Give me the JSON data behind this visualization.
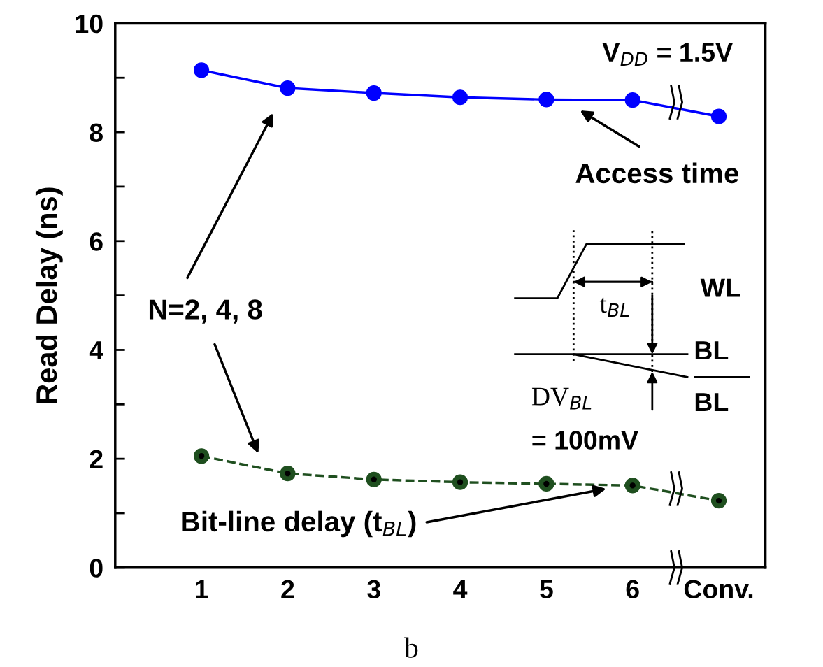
{
  "chart_data": {
    "type": "line",
    "ylabel": "Read Delay (ns)",
    "categories": [
      "1",
      "2",
      "3",
      "4",
      "5",
      "6",
      "Conv."
    ],
    "series": [
      {
        "color": "#0000ff",
        "values": [
          9.14,
          8.81,
          8.72,
          8.64,
          8.6,
          8.59,
          8.29
        ],
        "line_style": "solid",
        "marker": "circle"
      },
      {
        "color": "#1f4f1f",
        "values": [
          2.05,
          1.73,
          1.62,
          1.57,
          1.54,
          1.51,
          1.23
        ],
        "line_style": "dashed",
        "marker": "circle"
      }
    ],
    "ylim": [
      0,
      10
    ],
    "yticks": [
      0,
      {
        "value": 1,
        "label": null
      },
      2,
      {
        "value": 3,
        "label": null
      },
      4,
      {
        "value": 5,
        "label": null
      },
      6,
      {
        "value": 7,
        "label": null
      },
      8,
      {
        "value": 9,
        "label": null
      },
      10
    ],
    "grid": false,
    "legend": false,
    "annotations": [
      "V$_{DD}$ = 1.5V",
      "Access time",
      "N=2, 4, 8",
      "Bit-line delay (t$_{BL}$)",
      "WL",
      "t$_{BL}$",
      "BL",
      "BL",
      "DV$_{BL}$",
      "= 100mV",
      "b"
    ]
  }
}
